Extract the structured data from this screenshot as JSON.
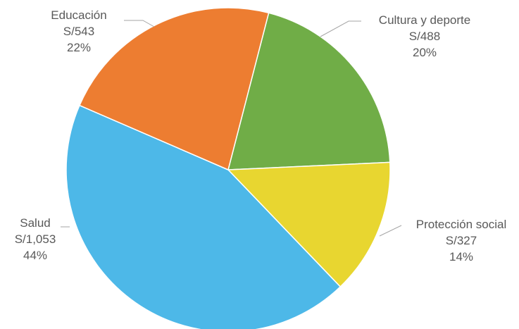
{
  "chart_data": {
    "type": "pie",
    "slices": [
      {
        "label": "Cultura y deporte",
        "amount": "S/488",
        "value": 488,
        "percent": "20%",
        "color": "#70ad47"
      },
      {
        "label": "Protección social",
        "amount": "S/327",
        "value": 327,
        "percent": "14%",
        "color": "#e8d630"
      },
      {
        "label": "Salud",
        "amount": "S/1,053",
        "value": 1053,
        "percent": "44%",
        "color": "#4db8e8"
      },
      {
        "label": "Educación",
        "amount": "S/543",
        "value": 543,
        "percent": "22%",
        "color": "#ed7d31"
      }
    ]
  }
}
